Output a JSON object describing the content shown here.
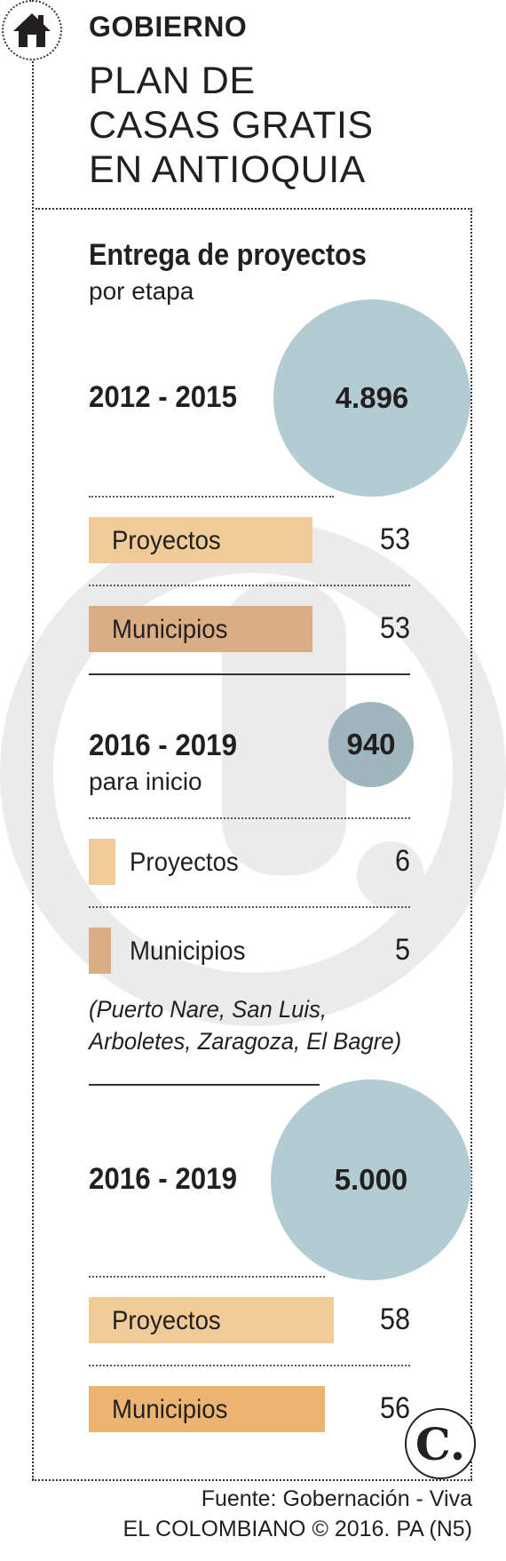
{
  "header": {
    "kicker": "GOBIERNO",
    "headline": [
      "PLAN DE",
      "CASAS GRATIS",
      "EN ANTIOQUIA"
    ]
  },
  "section": {
    "title": "Entrega de proyectos",
    "subtitle": "por etapa"
  },
  "colors": {
    "bubble": "#b3ccd4",
    "bubble_dark": "#9fb6bf",
    "proyectos": "#efcb98",
    "municipios": "#dbad85",
    "proyectos_p3": "#efcb98",
    "municipios_p3": "#edb471"
  },
  "chart_data": {
    "type": "bar",
    "title": "Entrega de proyectos",
    "subtitle": "por etapa",
    "categories": [
      "Proyectos",
      "Municipios"
    ],
    "groups": [
      {
        "period": "2012 - 2015",
        "note": "",
        "total": 4896,
        "total_label": "4.896",
        "values": [
          53,
          53
        ],
        "value_labels": [
          "53",
          "53"
        ]
      },
      {
        "period": "2016 - 2019",
        "note": "para inicio",
        "total": 940,
        "total_label": "940",
        "values": [
          6,
          5
        ],
        "value_labels": [
          "6",
          "5"
        ]
      },
      {
        "period": "2016 - 2019",
        "note": "",
        "total": 5000,
        "total_label": "5.000",
        "values": [
          58,
          56
        ],
        "value_labels": [
          "58",
          "56"
        ]
      }
    ]
  },
  "note": [
    "(Puerto Nare, San Luis,",
    "Arboletes, Zaragoza, El Bagre)"
  ],
  "footer": {
    "source": "Fuente: Gobernación - Viva",
    "credit": "EL COLOMBIANO © 2016. PA (N5)"
  },
  "icons": {
    "home": "home-icon",
    "logo": "el-colombiano-logo"
  },
  "logo_text": "C."
}
